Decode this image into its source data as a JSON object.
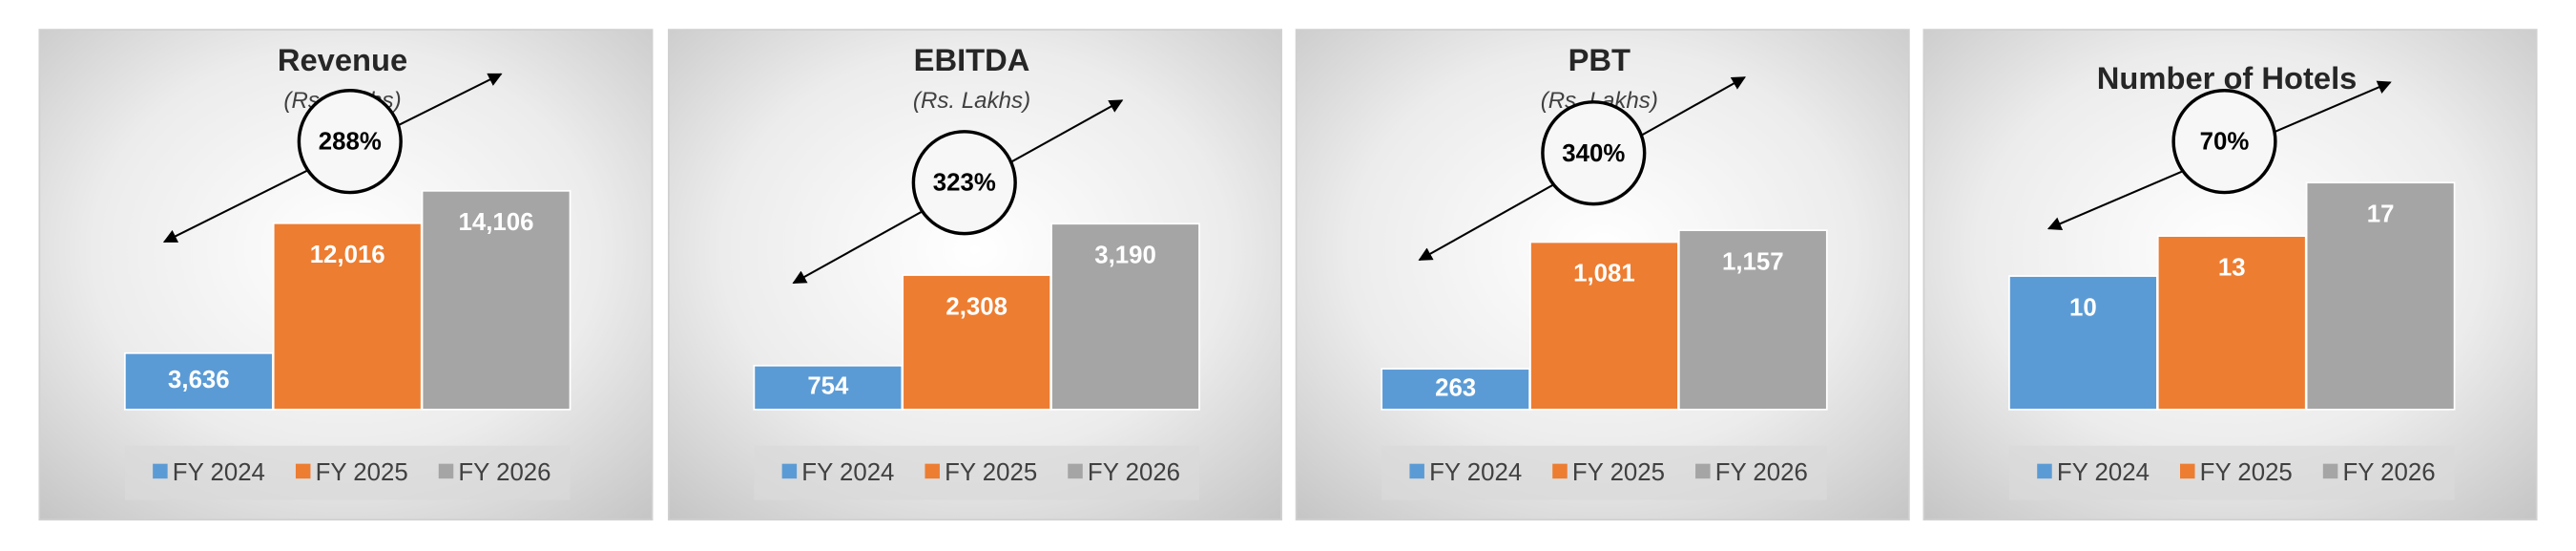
{
  "chart_data": [
    {
      "type": "bar",
      "title": "Revenue",
      "subtitle": "(Rs. Lakhs)",
      "annotation": "288%",
      "series": [
        {
          "name": "FY 2024",
          "color": "#5b9bd5",
          "values": [
            3636
          ],
          "value_labels": [
            "3,636"
          ]
        },
        {
          "name": "FY 2025",
          "color": "#ed7d31",
          "values": [
            12016
          ],
          "value_labels": [
            "12,016"
          ]
        },
        {
          "name": "FY 2026",
          "color": "#a5a5a5",
          "values": [
            14106
          ],
          "value_labels": [
            "14,106"
          ]
        }
      ]
    },
    {
      "type": "bar",
      "title": "EBITDA",
      "subtitle": "(Rs. Lakhs)",
      "annotation": "323%",
      "series": [
        {
          "name": "FY 2024",
          "color": "#5b9bd5",
          "values": [
            754
          ]
        },
        {
          "name": "FY 2025",
          "color": "#ed7d31",
          "values": [
            2308
          ],
          "value_labels": [
            "2,308"
          ]
        },
        {
          "name": "FY 2026",
          "color": "#a5a5a5",
          "values": [
            3190
          ],
          "value_labels": [
            "3,190"
          ]
        }
      ]
    },
    {
      "type": "bar",
      "title": "PBT",
      "subtitle": "(Rs. Lakhs)",
      "annotation": "340%",
      "series": [
        {
          "name": "FY 2024",
          "color": "#5b9bd5",
          "values": [
            263
          ]
        },
        {
          "name": "FY 2025",
          "color": "#ed7d31",
          "values": [
            1081
          ],
          "value_labels": [
            "1,081"
          ]
        },
        {
          "name": "FY 2026",
          "color": "#a5a5a5",
          "values": [
            1157
          ],
          "value_labels": [
            "1,157"
          ]
        }
      ]
    },
    {
      "type": "bar",
      "title": "Number of Hotels",
      "annotation": "70%",
      "series": [
        {
          "name": "FY 2024",
          "color": "#5b9bd5",
          "values": [
            10
          ]
        },
        {
          "name": "FY 2025",
          "color": "#ed7d31",
          "values": [
            13
          ]
        },
        {
          "name": "FY 2026",
          "color": "#a5a5a5",
          "values": [
            17
          ]
        }
      ]
    }
  ]
}
